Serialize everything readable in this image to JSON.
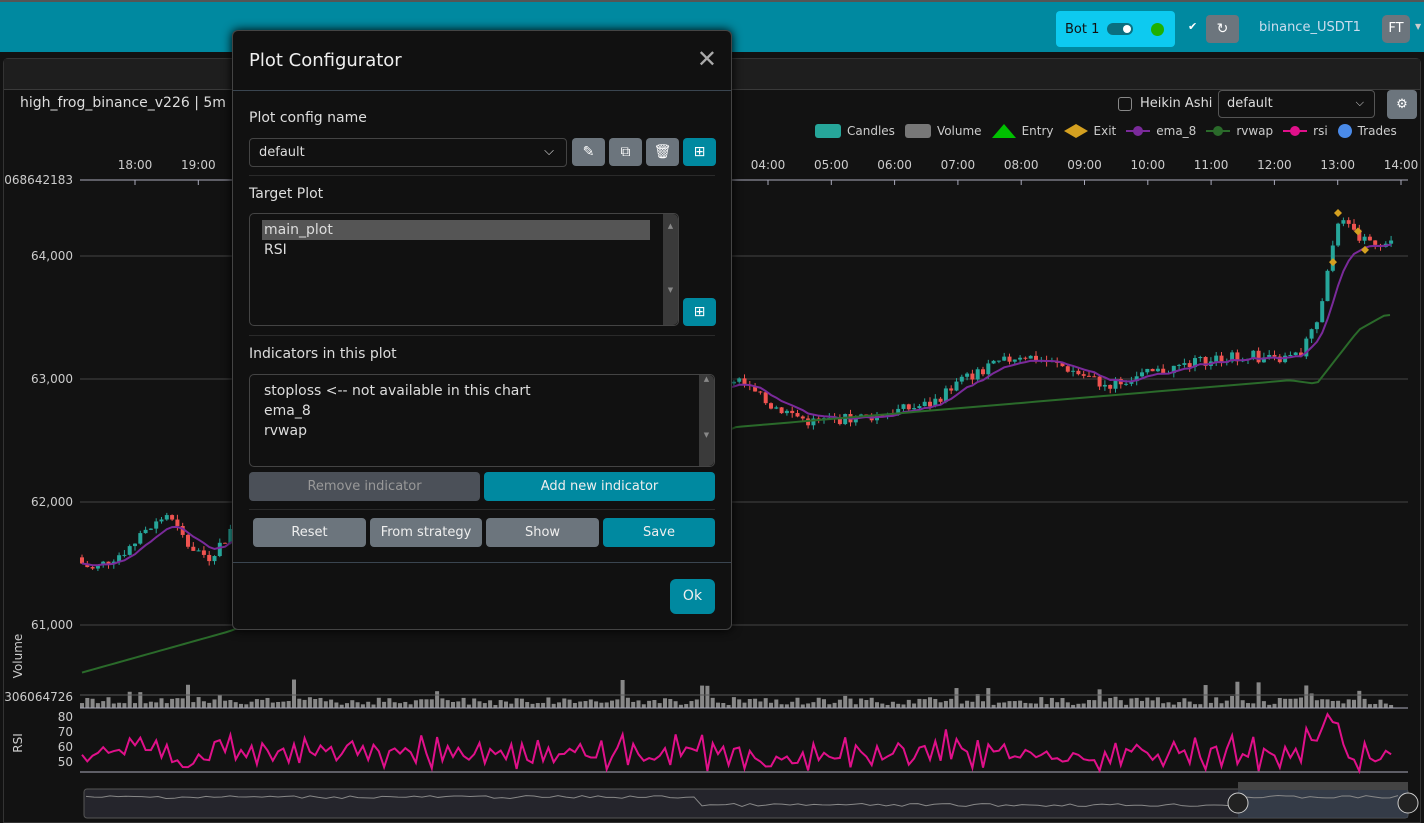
{
  "topbar": {
    "bot_label": "Bot 1",
    "exchange": "binance_USDT1",
    "user_initials": "FT",
    "colors": {
      "bar": "#0089a0",
      "bot_pill": "#0dcaf0",
      "online": "#1fb000"
    }
  },
  "chart": {
    "title": "high_frog_binance_v226 | 5m",
    "heikin_ashi_label": "Heikin Ashi",
    "heikin_ashi_checked": false,
    "config_select": "default",
    "legend": [
      {
        "label": "Candles",
        "color": "#26a69a",
        "shape": "rect"
      },
      {
        "label": "Volume",
        "color": "#777777",
        "shape": "rect"
      },
      {
        "label": "Entry",
        "color": "#00c000",
        "shape": "triangle"
      },
      {
        "label": "Exit",
        "color": "#d4a020",
        "shape": "diamond"
      },
      {
        "label": "ema_8",
        "color": "#7a2a9a",
        "shape": "line"
      },
      {
        "label": "rvwap",
        "color": "#2a6a2a",
        "shape": "line"
      },
      {
        "label": "rsi",
        "color": "#e0108a",
        "shape": "line"
      },
      {
        "label": "Trades",
        "color": "#4a8ae8",
        "shape": "circle"
      }
    ],
    "time_ticks": [
      "18:00",
      "19:00",
      "04:00",
      "05:00",
      "06:00",
      "07:00",
      "08:00",
      "09:00",
      "10:00",
      "11:00",
      "12:00",
      "13:00",
      "14:00"
    ],
    "price_ticks": [
      "64,000",
      "63,000",
      "62,000",
      "61,000"
    ],
    "top_label": "068642183",
    "volume_label": "Volume",
    "volume_max_label": "306064726",
    "rsi_label": "RSI",
    "rsi_ticks": [
      "80",
      "70",
      "60",
      "50"
    ]
  },
  "chart_data": {
    "type": "candlestick",
    "price_points": [
      [
        "17:00",
        61550
      ],
      [
        "17:20",
        61450
      ],
      [
        "17:50",
        61600
      ],
      [
        "18:30",
        61900
      ],
      [
        "18:50",
        61650
      ],
      [
        "19:10",
        61550
      ],
      [
        "19:30",
        61750
      ],
      [
        "03:30",
        63000
      ],
      [
        "04:00",
        62800
      ],
      [
        "04:40",
        62650
      ],
      [
        "05:40",
        62700
      ],
      [
        "06:35",
        62800
      ],
      [
        "07:05",
        63000
      ],
      [
        "08:00",
        63200
      ],
      [
        "08:40",
        63100
      ],
      [
        "09:20",
        62950
      ],
      [
        "10:05",
        63050
      ],
      [
        "10:55",
        63150
      ],
      [
        "11:35",
        63200
      ],
      [
        "12:00",
        63150
      ],
      [
        "12:25",
        63200
      ],
      [
        "12:45",
        63600
      ],
      [
        "13:00",
        64300
      ],
      [
        "13:20",
        64150
      ],
      [
        "13:45",
        64100
      ]
    ],
    "rvwap_points": [
      [
        "17:00",
        60590
      ],
      [
        "19:30",
        60950
      ],
      [
        "03:30",
        62610
      ],
      [
        "12:15",
        62990
      ],
      [
        "12:40",
        62960
      ],
      [
        "13:20",
        63400
      ],
      [
        "13:45",
        63520
      ]
    ],
    "ylim": [
      60900,
      64600
    ]
  },
  "modal": {
    "title": "Plot Configurator",
    "config_name_label": "Plot config name",
    "config_name": "default",
    "target_plot_label": "Target Plot",
    "target_plots": [
      "main_plot",
      "RSI"
    ],
    "selected_target": "main_plot",
    "indicators_label": "Indicators in this plot",
    "indicators": [
      "stoploss <-- not available in this chart",
      "ema_8",
      "rvwap"
    ],
    "remove_label": "Remove indicator",
    "add_label": "Add new indicator",
    "reset_label": "Reset",
    "from_strategy_label": "From strategy",
    "show_label": "Show",
    "save_label": "Save",
    "ok_label": "Ok"
  }
}
